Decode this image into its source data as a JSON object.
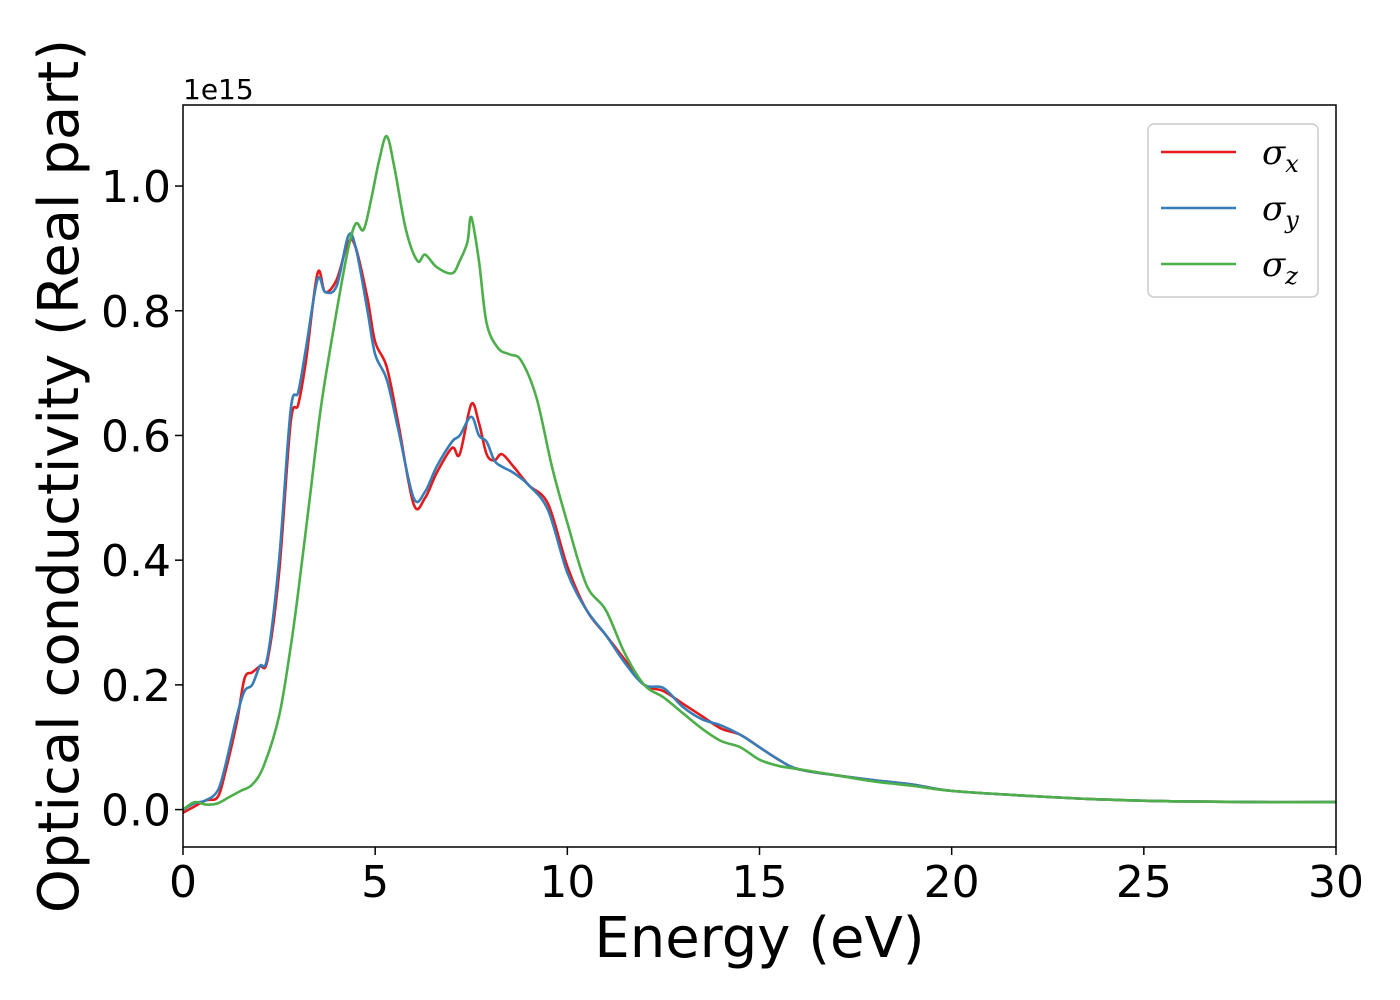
{
  "chart_data": {
    "type": "line",
    "title": "",
    "xlabel": "Energy (eV)",
    "ylabel": "Optical conductivity (Real part)",
    "y_offset_text": "1e15",
    "xlim": [
      0,
      30
    ],
    "ylim": [
      -0.06,
      1.13
    ],
    "xticks": [
      0,
      5,
      10,
      15,
      20,
      25,
      30
    ],
    "xtick_labels": [
      "0",
      "5",
      "10",
      "15",
      "20",
      "25",
      "30"
    ],
    "yticks": [
      0.0,
      0.2,
      0.4,
      0.6,
      0.8,
      1.0
    ],
    "ytick_labels": [
      "0.0",
      "0.2",
      "0.4",
      "0.6",
      "0.8",
      "1.0"
    ],
    "grid": false,
    "legend_position": "top-right",
    "series": [
      {
        "name": "σx",
        "legend_symbol": "σ",
        "legend_subscript": "x",
        "color": "#e41a1c",
        "x": [
          0,
          0.3,
          0.6,
          0.9,
          1.1,
          1.4,
          1.6,
          1.8,
          2.0,
          2.2,
          2.5,
          2.8,
          3.0,
          3.2,
          3.5,
          3.7,
          4.0,
          4.3,
          4.5,
          4.8,
          5.0,
          5.3,
          5.6,
          6.0,
          6.3,
          6.6,
          7.0,
          7.2,
          7.5,
          7.7,
          7.9,
          8.1,
          8.3,
          8.6,
          9.0,
          9.5,
          10.0,
          10.5,
          11.0,
          11.5,
          12.0,
          12.5,
          13.0,
          13.5,
          14.0,
          14.5,
          15.0,
          15.5,
          16.0,
          17.0,
          18.0,
          19.0,
          20.0,
          22.0,
          24.0,
          26.0,
          28.0,
          30.0
        ],
        "y": [
          -0.005,
          0.005,
          0.015,
          0.02,
          0.06,
          0.14,
          0.21,
          0.22,
          0.23,
          0.24,
          0.38,
          0.62,
          0.65,
          0.72,
          0.86,
          0.83,
          0.85,
          0.91,
          0.9,
          0.82,
          0.75,
          0.71,
          0.62,
          0.49,
          0.5,
          0.54,
          0.58,
          0.57,
          0.65,
          0.62,
          0.57,
          0.56,
          0.57,
          0.55,
          0.52,
          0.49,
          0.39,
          0.32,
          0.28,
          0.24,
          0.2,
          0.19,
          0.17,
          0.15,
          0.13,
          0.12,
          0.1,
          0.08,
          0.065,
          0.055,
          0.047,
          0.04,
          0.03,
          0.022,
          0.016,
          0.013,
          0.012,
          0.012
        ]
      },
      {
        "name": "σy",
        "legend_symbol": "σ",
        "legend_subscript": "y",
        "color": "#377eb8",
        "x": [
          0,
          0.3,
          0.6,
          0.9,
          1.1,
          1.4,
          1.6,
          1.8,
          2.0,
          2.2,
          2.5,
          2.8,
          3.0,
          3.2,
          3.5,
          3.7,
          4.0,
          4.3,
          4.5,
          4.8,
          5.0,
          5.3,
          5.6,
          6.0,
          6.3,
          6.6,
          7.0,
          7.2,
          7.5,
          7.7,
          7.9,
          8.1,
          8.3,
          8.6,
          9.0,
          9.5,
          10.0,
          10.5,
          11.0,
          11.5,
          12.0,
          12.5,
          13.0,
          13.5,
          14.0,
          14.5,
          15.0,
          15.5,
          16.0,
          17.0,
          18.0,
          19.0,
          20.0,
          22.0,
          24.0,
          26.0,
          28.0,
          30.0
        ],
        "y": [
          0.0,
          0.01,
          0.015,
          0.03,
          0.07,
          0.15,
          0.19,
          0.2,
          0.23,
          0.245,
          0.4,
          0.64,
          0.67,
          0.74,
          0.85,
          0.83,
          0.84,
          0.92,
          0.9,
          0.8,
          0.73,
          0.69,
          0.61,
          0.5,
          0.51,
          0.55,
          0.59,
          0.6,
          0.63,
          0.6,
          0.59,
          0.56,
          0.55,
          0.54,
          0.52,
          0.48,
          0.38,
          0.32,
          0.28,
          0.235,
          0.2,
          0.195,
          0.165,
          0.145,
          0.135,
          0.12,
          0.1,
          0.08,
          0.065,
          0.055,
          0.047,
          0.04,
          0.03,
          0.022,
          0.016,
          0.013,
          0.012,
          0.012
        ]
      },
      {
        "name": "σz",
        "legend_symbol": "σ",
        "legend_subscript": "z",
        "color": "#4daf4a",
        "x": [
          0,
          0.3,
          0.6,
          0.9,
          1.2,
          1.5,
          1.8,
          2.1,
          2.5,
          2.8,
          3.0,
          3.3,
          3.6,
          4.0,
          4.3,
          4.5,
          4.7,
          4.9,
          5.1,
          5.3,
          5.5,
          5.8,
          6.1,
          6.3,
          6.6,
          7.0,
          7.2,
          7.4,
          7.5,
          7.7,
          7.9,
          8.2,
          8.5,
          8.8,
          9.2,
          9.6,
          10.0,
          10.5,
          11.0,
          11.5,
          12.0,
          12.5,
          13.0,
          13.5,
          14.0,
          14.5,
          15.0,
          15.5,
          16.0,
          17.0,
          18.0,
          19.0,
          20.0,
          22.0,
          24.0,
          26.0,
          28.0,
          30.0
        ],
        "y": [
          0.0,
          0.012,
          0.008,
          0.01,
          0.02,
          0.03,
          0.04,
          0.07,
          0.15,
          0.26,
          0.35,
          0.5,
          0.65,
          0.8,
          0.9,
          0.94,
          0.93,
          0.98,
          1.04,
          1.08,
          1.03,
          0.93,
          0.88,
          0.89,
          0.87,
          0.86,
          0.88,
          0.91,
          0.95,
          0.88,
          0.78,
          0.74,
          0.73,
          0.72,
          0.66,
          0.55,
          0.46,
          0.36,
          0.32,
          0.25,
          0.2,
          0.18,
          0.155,
          0.13,
          0.11,
          0.1,
          0.08,
          0.07,
          0.065,
          0.055,
          0.045,
          0.038,
          0.03,
          0.022,
          0.016,
          0.013,
          0.012,
          0.012
        ]
      }
    ]
  }
}
